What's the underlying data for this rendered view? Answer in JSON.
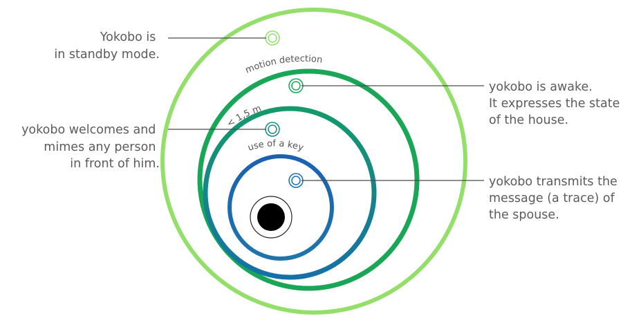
{
  "zones": [
    {
      "key": "outer",
      "color": "#93df6a"
    },
    {
      "key": "motion",
      "label": "motion detection",
      "color": "#19a457"
    },
    {
      "key": "near",
      "label": "< 1,5 m",
      "color": "#138a84"
    },
    {
      "key": "key",
      "label": "use of a key",
      "color": "#1a6db3"
    }
  ],
  "callouts": {
    "standby": [
      "Yokobo is",
      "in standby mode."
    ],
    "awake": [
      "yokobo is awake.",
      "It expresses the state",
      "of the house."
    ],
    "welcome": [
      "yokobo welcomes and",
      "mimes any person",
      "in front of him."
    ],
    "transmit": [
      "yokobo transmits the",
      "message (a trace) of",
      "the spouse."
    ]
  },
  "colors": {
    "text": "#5b5b5b",
    "leader": "#4a4a4a",
    "center": "#000000"
  }
}
